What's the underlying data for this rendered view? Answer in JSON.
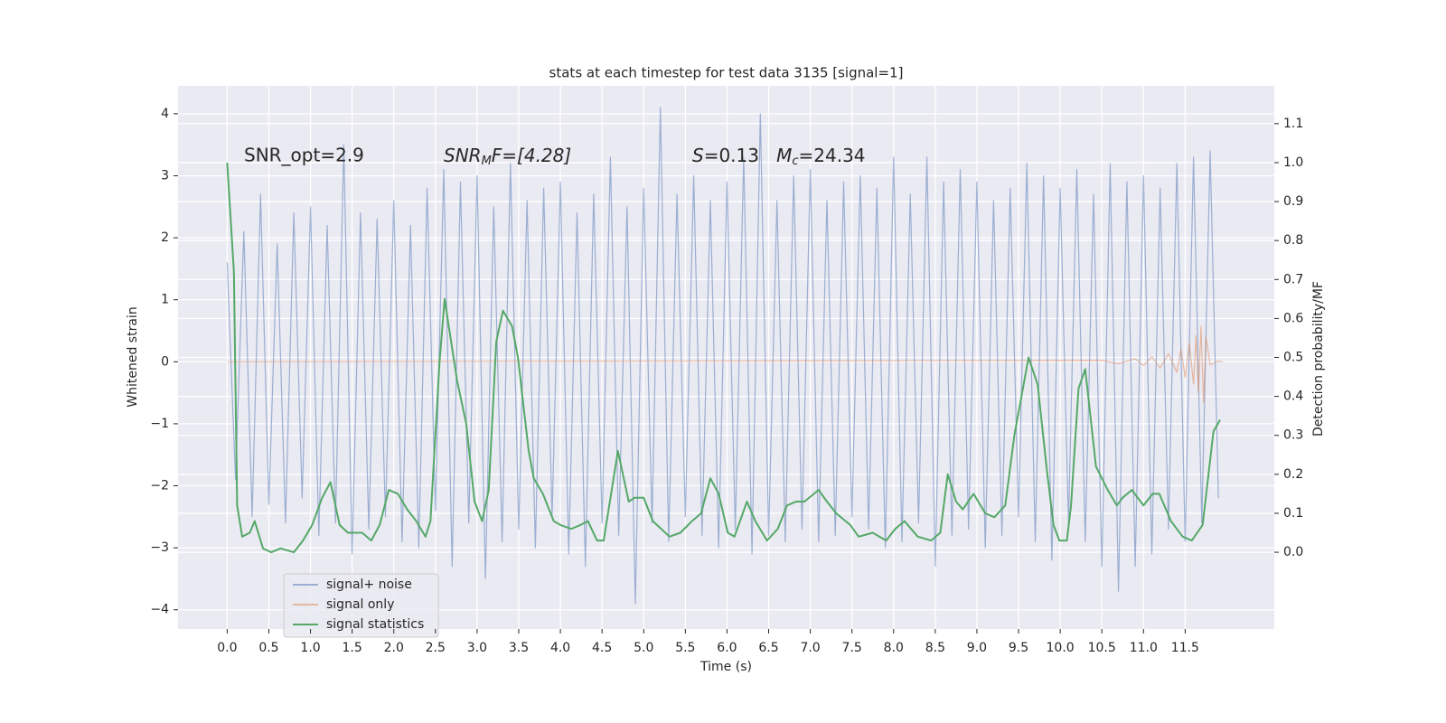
{
  "chart_data": {
    "type": "line",
    "title": "stats at each timestep for test data 3135 [signal=1]",
    "xlabel": "Time (s)",
    "ylabel": "Whitened strain",
    "y2label": "Detection probability/MF",
    "annotations": [
      [
        "SNR_opt=2.9"
      ],
      [
        "SNR",
        "M",
        "F=[4.28]"
      ],
      [
        "S",
        "=0.13   ",
        "M",
        "c",
        "=24.34"
      ]
    ],
    "xlim": [
      -0.59,
      12.57
    ],
    "ylim": [
      -4.31,
      4.45
    ],
    "y2lim": [
      -0.197,
      1.197
    ],
    "xticks": [
      {
        "value": 0,
        "label": "0.0"
      },
      0.5,
      {
        "value": 1,
        "label": "1.0"
      },
      1.5,
      {
        "value": 2,
        "label": "2.0"
      },
      2.5,
      {
        "value": 3,
        "label": "3.0"
      },
      3.5,
      {
        "value": 4,
        "label": "4.0"
      },
      4.5,
      {
        "value": 5,
        "label": "5.0"
      },
      5.5,
      {
        "value": 6,
        "label": "6.0"
      },
      6.5,
      {
        "value": 7,
        "label": "7.0"
      },
      7.5,
      {
        "value": 8,
        "label": "8.0"
      },
      8.5,
      {
        "value": 9,
        "label": "9.0"
      },
      9.5,
      {
        "value": 10,
        "label": "10.0"
      },
      10.5,
      {
        "value": 11,
        "label": "11.0"
      },
      11.5
    ],
    "yticks": [
      {
        "value": -4,
        "label": "−4"
      },
      {
        "value": -3,
        "label": "−3"
      },
      {
        "value": -2,
        "label": "−2"
      },
      {
        "value": -1,
        "label": "−1"
      },
      0,
      1,
      2,
      3,
      4
    ],
    "y2ticks": [
      {
        "value": 0,
        "label": "0.0"
      },
      0.1,
      0.2,
      0.3,
      0.4,
      0.5,
      0.6,
      0.7,
      0.8,
      0.9,
      {
        "value": 1,
        "label": "1.0"
      },
      1.1
    ],
    "grid": true,
    "legend": "lower left",
    "series": [
      {
        "name": "signal+ noise",
        "color": "#4c72b0",
        "x": [
          0.0,
          0.1,
          0.2,
          0.3,
          0.4,
          0.5,
          0.6,
          0.7,
          0.8,
          0.9,
          1.0,
          1.1,
          1.2,
          1.3,
          1.4,
          1.5,
          1.6,
          1.7,
          1.8,
          1.9,
          2.0,
          2.1,
          2.2,
          2.3,
          2.4,
          2.5,
          2.6,
          2.7,
          2.8,
          2.9,
          3.0,
          3.1,
          3.2,
          3.3,
          3.4,
          3.5,
          3.6,
          3.7,
          3.8,
          3.9,
          4.0,
          4.1,
          4.2,
          4.3,
          4.4,
          4.5,
          4.6,
          4.7,
          4.8,
          4.9,
          5.0,
          5.1,
          5.2,
          5.3,
          5.4,
          5.5,
          5.6,
          5.7,
          5.8,
          5.9,
          6.0,
          6.1,
          6.2,
          6.3,
          6.4,
          6.5,
          6.6,
          6.7,
          6.8,
          6.9,
          7.0,
          7.1,
          7.2,
          7.3,
          7.4,
          7.5,
          7.6,
          7.7,
          7.8,
          7.9,
          8.0,
          8.1,
          8.2,
          8.3,
          8.4,
          8.5,
          8.6,
          8.7,
          8.8,
          8.9,
          9.0,
          9.1,
          9.2,
          9.3,
          9.4,
          9.5,
          9.6,
          9.7,
          9.8,
          9.9,
          10.0,
          10.1,
          10.2,
          10.3,
          10.4,
          10.5,
          10.6,
          10.7,
          10.8,
          10.9,
          11.0,
          11.1,
          11.2,
          11.3,
          11.4,
          11.5,
          11.6,
          11.7,
          11.8,
          11.9
        ],
        "values": [
          1.6,
          -1.9,
          2.1,
          -2.5,
          2.7,
          -2.3,
          1.9,
          -2.6,
          2.4,
          -2.2,
          2.5,
          -2.8,
          2.2,
          -2.6,
          3.5,
          -3.1,
          2.4,
          -2.7,
          2.3,
          -2.5,
          2.6,
          -2.9,
          2.2,
          -3.0,
          2.8,
          -2.4,
          3.1,
          -3.3,
          2.9,
          -2.6,
          3.0,
          -3.5,
          2.5,
          -2.9,
          3.2,
          -2.7,
          2.6,
          -3.0,
          2.8,
          -2.5,
          2.9,
          -3.1,
          2.4,
          -3.3,
          2.7,
          -2.6,
          3.3,
          -2.8,
          2.5,
          -3.9,
          2.8,
          -2.6,
          4.1,
          -2.9,
          2.7,
          -2.5,
          3.0,
          -2.8,
          2.6,
          -3.0,
          2.9,
          -2.7,
          3.3,
          -3.1,
          4.0,
          -2.8,
          2.6,
          -2.9,
          3.0,
          -2.7,
          3.1,
          -2.9,
          2.6,
          -2.8,
          2.9,
          -2.5,
          3.0,
          -2.7,
          2.8,
          -3.0,
          3.3,
          -2.9,
          2.7,
          -2.6,
          3.3,
          -3.3,
          2.9,
          -2.8,
          3.1,
          -2.7,
          2.9,
          -3.0,
          2.6,
          -2.8,
          2.8,
          -2.5,
          3.2,
          -2.9,
          3.0,
          -3.2,
          2.8,
          -2.6,
          3.1,
          -2.9,
          2.7,
          -3.3,
          3.2,
          -3.7,
          2.9,
          -3.3,
          3.0,
          -3.1,
          2.8,
          -2.7,
          3.2,
          -2.9,
          3.3,
          -2.6,
          3.4,
          -2.2
        ]
      },
      {
        "name": "signal only",
        "color": "#dd8452",
        "x": [
          0,
          10.5,
          10.7,
          10.9,
          11.0,
          11.1,
          11.2,
          11.3,
          11.4,
          11.45,
          11.5,
          11.55,
          11.6,
          11.63,
          11.66,
          11.69,
          11.72,
          11.75,
          11.8,
          11.9,
          11.95
        ],
        "values": [
          0,
          0.02,
          -0.03,
          0.05,
          -0.06,
          0.08,
          -0.1,
          0.13,
          -0.17,
          0.2,
          -0.25,
          0.3,
          -0.36,
          0.42,
          -0.5,
          0.57,
          -0.66,
          0.4,
          -0.05,
          0.01,
          0
        ]
      },
      {
        "name": "signal statistics",
        "color": "#55a868",
        "axis": "y2",
        "x": [
          0.0,
          0.08,
          0.12,
          0.18,
          0.27,
          0.33,
          0.43,
          0.53,
          0.64,
          0.8,
          0.91,
          1.02,
          1.14,
          1.24,
          1.35,
          1.45,
          1.62,
          1.73,
          1.83,
          1.94,
          2.05,
          2.16,
          2.27,
          2.38,
          2.44,
          2.55,
          2.61,
          2.76,
          2.87,
          2.97,
          3.06,
          3.14,
          3.23,
          3.31,
          3.42,
          3.49,
          3.62,
          3.68,
          3.79,
          3.92,
          4.0,
          4.13,
          4.24,
          4.33,
          4.44,
          4.52,
          4.69,
          4.82,
          4.89,
          5.0,
          5.11,
          5.31,
          5.44,
          5.58,
          5.69,
          5.8,
          5.9,
          6.01,
          6.09,
          6.24,
          6.34,
          6.48,
          6.61,
          6.72,
          6.83,
          6.93,
          7.1,
          7.2,
          7.31,
          7.48,
          7.58,
          7.75,
          7.91,
          8.02,
          8.13,
          8.29,
          8.45,
          8.56,
          8.65,
          8.75,
          8.83,
          8.96,
          9.1,
          9.21,
          9.34,
          9.45,
          9.62,
          9.73,
          9.84,
          9.92,
          9.99,
          10.08,
          10.13,
          10.22,
          10.3,
          10.43,
          10.57,
          10.68,
          10.75,
          10.86,
          11.0,
          11.11,
          11.19,
          11.33,
          11.47,
          11.58,
          11.71,
          11.84,
          11.92
        ],
        "values": [
          1.0,
          0.72,
          0.12,
          0.04,
          0.05,
          0.08,
          0.01,
          0.0,
          0.01,
          0.0,
          0.03,
          0.07,
          0.14,
          0.18,
          0.07,
          0.05,
          0.05,
          0.03,
          0.07,
          0.16,
          0.15,
          0.11,
          0.08,
          0.04,
          0.08,
          0.49,
          0.65,
          0.44,
          0.33,
          0.13,
          0.08,
          0.16,
          0.54,
          0.62,
          0.58,
          0.5,
          0.26,
          0.19,
          0.15,
          0.08,
          0.07,
          0.06,
          0.07,
          0.08,
          0.03,
          0.03,
          0.26,
          0.13,
          0.14,
          0.14,
          0.08,
          0.04,
          0.05,
          0.08,
          0.1,
          0.19,
          0.15,
          0.05,
          0.04,
          0.13,
          0.08,
          0.03,
          0.06,
          0.12,
          0.13,
          0.13,
          0.16,
          0.13,
          0.1,
          0.07,
          0.04,
          0.05,
          0.03,
          0.06,
          0.08,
          0.04,
          0.03,
          0.05,
          0.2,
          0.13,
          0.11,
          0.15,
          0.1,
          0.09,
          0.12,
          0.3,
          0.5,
          0.43,
          0.21,
          0.07,
          0.03,
          0.03,
          0.12,
          0.42,
          0.47,
          0.22,
          0.16,
          0.12,
          0.14,
          0.16,
          0.12,
          0.15,
          0.15,
          0.08,
          0.04,
          0.03,
          0.07,
          0.31,
          0.34
        ]
      }
    ]
  }
}
